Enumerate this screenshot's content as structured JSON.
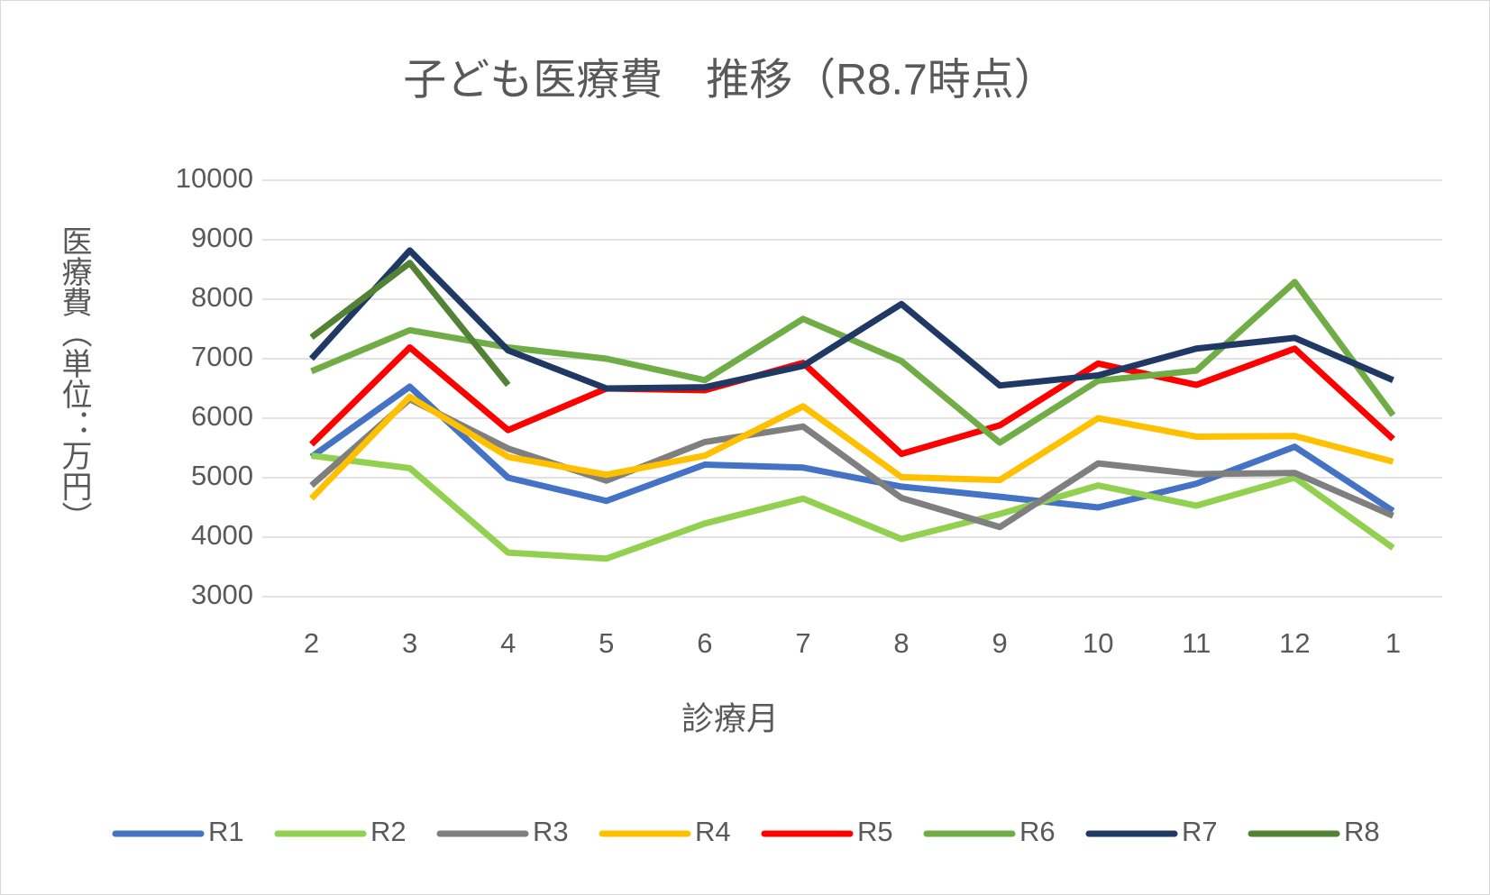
{
  "chart_data": {
    "type": "line",
    "title": "子ども医療費　推移（R8.7時点）",
    "x_label": "診療月",
    "y_label": "医療費（単位：万円）",
    "categories": [
      "2",
      "3",
      "4",
      "5",
      "6",
      "7",
      "8",
      "9",
      "10",
      "11",
      "12",
      "1"
    ],
    "ylim": [
      3000,
      10000
    ],
    "yticks": [
      3000,
      4000,
      5000,
      6000,
      7000,
      8000,
      9000,
      10000
    ],
    "grid": true,
    "legend": "bottom",
    "series": [
      {
        "name": "R1",
        "color": "#4472c4",
        "values": [
          5350,
          6530,
          5000,
          4610,
          5220,
          5170,
          4850,
          4680,
          4500,
          4900,
          5520,
          4440
        ]
      },
      {
        "name": "R2",
        "color": "#92d050",
        "values": [
          5370,
          5160,
          3740,
          3640,
          4230,
          4650,
          3970,
          4390,
          4870,
          4530,
          5000,
          3820
        ]
      },
      {
        "name": "R3",
        "color": "#7f7f7f",
        "values": [
          4870,
          6320,
          5490,
          4950,
          5600,
          5860,
          4660,
          4170,
          5240,
          5060,
          5080,
          4360
        ]
      },
      {
        "name": "R4",
        "color": "#ffc000",
        "values": [
          4650,
          6360,
          5350,
          5050,
          5370,
          6200,
          5010,
          4960,
          6000,
          5690,
          5700,
          5270
        ]
      },
      {
        "name": "R5",
        "color": "#ff0000",
        "values": [
          5560,
          7190,
          5800,
          6500,
          6470,
          6930,
          5400,
          5880,
          6920,
          6560,
          7170,
          5650
        ]
      },
      {
        "name": "R6",
        "color": "#70ad47",
        "values": [
          6790,
          7480,
          7190,
          7000,
          6640,
          7670,
          6960,
          5590,
          6630,
          6800,
          8290,
          6050
        ]
      },
      {
        "name": "R7",
        "color": "#203864",
        "values": [
          7000,
          8820,
          7140,
          6500,
          6520,
          6880,
          7920,
          6550,
          6720,
          7170,
          7350,
          6640
        ]
      },
      {
        "name": "R8",
        "color": "#548235",
        "values": [
          7360,
          8610,
          6560,
          null,
          null,
          null,
          null,
          null,
          null,
          null,
          null,
          null
        ]
      }
    ]
  }
}
